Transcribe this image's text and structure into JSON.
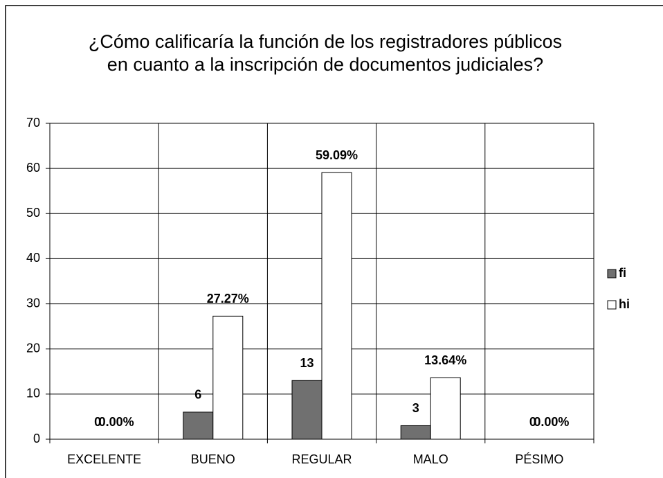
{
  "chart_data": {
    "type": "bar",
    "title": "¿Cómo calificaría la función de los registradores públicos en cuanto a la inscripción de documentos judiciales?",
    "categories": [
      "EXCELENTE",
      "BUENO",
      "REGULAR",
      "MALO",
      "PÉSIMO"
    ],
    "series": [
      {
        "name": "fi",
        "color": "#707070",
        "values": [
          0,
          6,
          13,
          3,
          0
        ]
      },
      {
        "name": "hi",
        "color": "#ffffff",
        "values": [
          0,
          27.27,
          59.09,
          13.64,
          0
        ],
        "value_labels": [
          "0.00%",
          "27.27%",
          "59.09%",
          "13.64%",
          "0.00%"
        ]
      }
    ],
    "ylim": [
      0,
      70
    ],
    "yticks": [
      0,
      10,
      20,
      30,
      40,
      50,
      60,
      70
    ],
    "grid": true,
    "legend": "right"
  }
}
